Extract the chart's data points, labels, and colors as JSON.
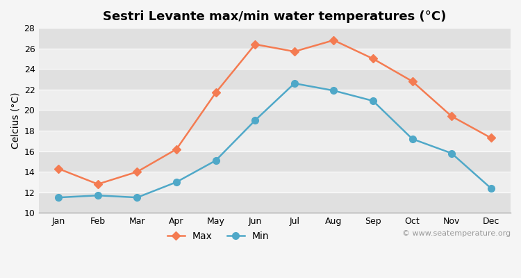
{
  "title": "Sestri Levante max/min water temperatures (°C)",
  "ylabel": "Celcius (°C)",
  "months": [
    "Jan",
    "Feb",
    "Mar",
    "Apr",
    "May",
    "Jun",
    "Jul",
    "Aug",
    "Sep",
    "Oct",
    "Nov",
    "Dec"
  ],
  "max_values": [
    14.3,
    12.8,
    14.0,
    16.2,
    21.7,
    26.4,
    25.7,
    26.8,
    25.0,
    22.8,
    19.4,
    17.3
  ],
  "min_values": [
    11.5,
    11.7,
    11.5,
    13.0,
    15.1,
    19.0,
    22.6,
    21.9,
    20.9,
    17.2,
    15.8,
    12.4
  ],
  "max_color": "#f47b51",
  "min_color": "#4fa8c8",
  "fig_bg_color": "#f5f5f5",
  "band_light": "#eeeeee",
  "band_dark": "#e0e0e0",
  "grid_color": "#ffffff",
  "ylim": [
    10,
    28
  ],
  "yticks": [
    10,
    12,
    14,
    16,
    18,
    20,
    22,
    24,
    26,
    28
  ],
  "watermark": "© www.seatemperature.org",
  "title_fontsize": 13,
  "axis_label_fontsize": 10,
  "tick_fontsize": 9,
  "legend_fontsize": 10,
  "max_marker": "D",
  "min_marker": "o",
  "max_marker_size": 6,
  "min_marker_size": 7,
  "line_width": 1.8
}
